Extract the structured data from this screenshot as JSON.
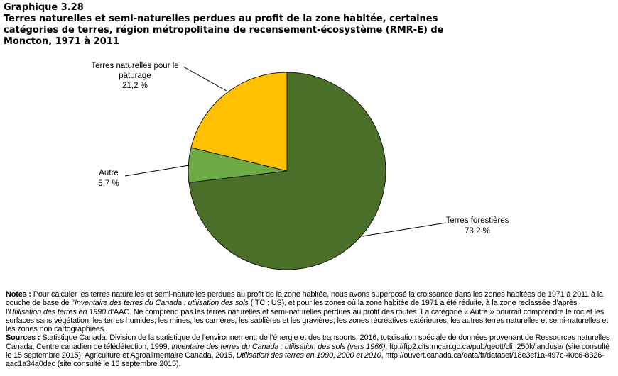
{
  "header": {
    "number": "Graphique  3.28",
    "title": "Terres naturelles et semi-naturelles perdues au profit de la zone habitée, certaines catégories de terres, région métropolitaine de recensement-écosystème (RMR-E) de Moncton, 1971 à 2011"
  },
  "chart_data": {
    "type": "pie",
    "start": "top",
    "direction": "clockwise",
    "slices": [
      {
        "label": "Terres forestières",
        "value": 73.2,
        "value_label": "73,2 %",
        "color": "#4A6F28"
      },
      {
        "label": "Autre",
        "value": 5.7,
        "value_label": "5,7 %",
        "color": "#6EAA44"
      },
      {
        "label_lines": [
          "Terres naturelles pour le",
          "pâturage"
        ],
        "label": "Terres naturelles pour le pâturage",
        "value": 21.2,
        "value_label": "21,2 %",
        "color": "#FFC000"
      }
    ]
  },
  "notes": {
    "notes_label": "Notes :",
    "n1": " Pour calculer les terres naturelles et semi-naturelles perdues au profit de la zone habitée, nous avons superposé la croissance dans les zones habitées de 1971 à 2011 à la couche de base de l’",
    "n2": "Inventaire des terres du Canada : utilisation des sols",
    "n3": " (ITC : US), et pour les zones où la zone habitée de 1971 a été réduite, à la zone reclassée d’après l’",
    "n4": "Utilisation des terres en 1990",
    "n5": " d’AAC. Ne comprend pas les terres naturelles et semi-naturelles perdues au profit des routes. La catégorie « Autre » pourrait comprendre le roc et les surfaces sans végétation; les terres humides; les mines, les carrières, les sablières et les gravières; les zones récréatives extérieures; les autres terres naturelles et semi-naturelles et les zones non cartographiées.",
    "sources_label": "Sources :",
    "s1": " Statistique Canada, Division de la statistique de l’environnement, de l’énergie et des transports, 2016, totalisation spéciale de données provenant de Ressources naturelles Canada, Centre canadien de télédétection, 1999, ",
    "s2": "Inventaire des terres du Canada : utilisation des sols (vers 1966)",
    "s3": ", ftp://ftp2.cits.rncan.gc.ca/pub/geott/cli_250k/landuse/ (site consulté le 15 septembre 2015); Agriculture et Agroalimentaire Canada, 2015, ",
    "s4": "Utilisation des terres en 1990, 2000 et 2010",
    "s5": ", http://ouvert.canada.ca/data/fr/dataset/18e3ef1a-497c-40c6-8326-aac1a34a0dec (site consulté le 16 septembre 2015)."
  }
}
